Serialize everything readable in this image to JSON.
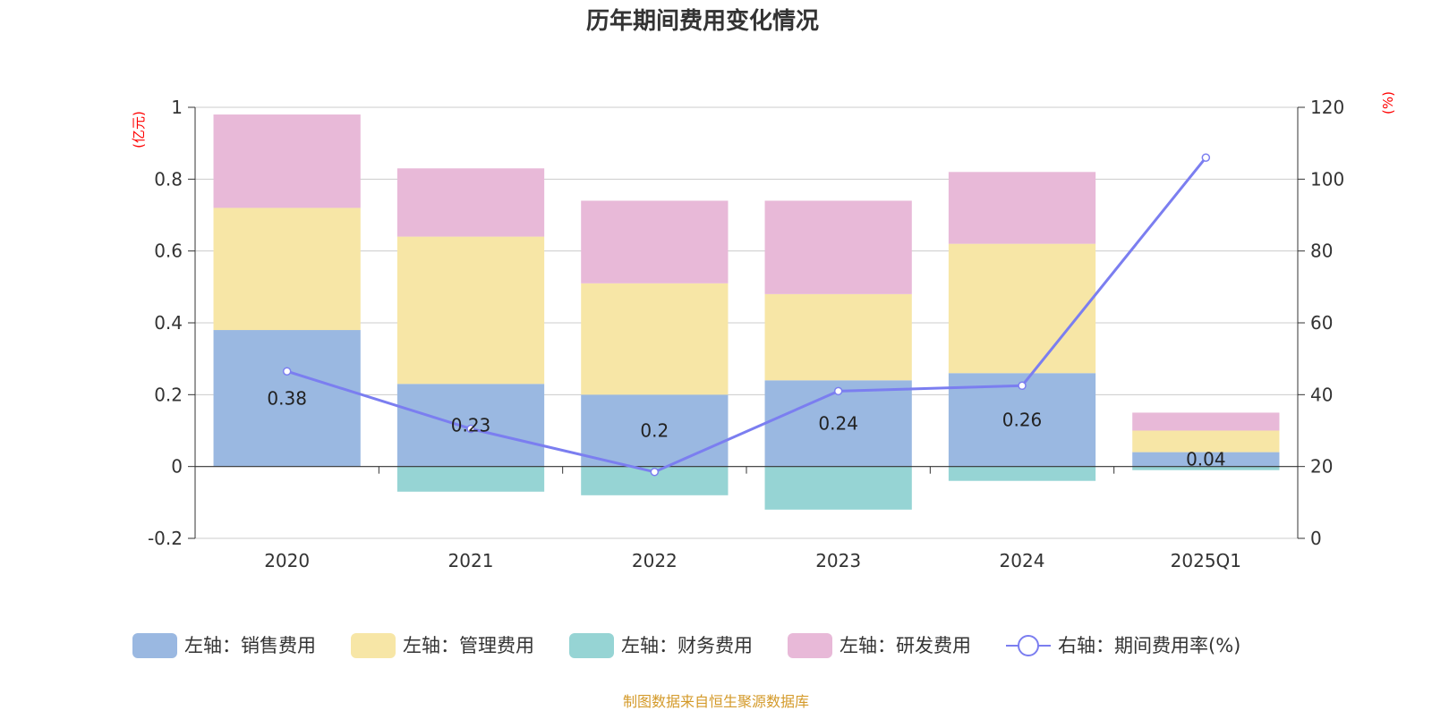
{
  "chart_data": {
    "type": "bar+line",
    "title": "历年期间费用变化情况",
    "categories": [
      "2020",
      "2021",
      "2022",
      "2023",
      "2024",
      "2025Q1"
    ],
    "left_axis": {
      "unit_label": "(亿元)",
      "range": [
        -0.2,
        1
      ],
      "ticks": [
        "-0.2",
        "0",
        "0.2",
        "0.4",
        "0.6",
        "0.8",
        "1"
      ]
    },
    "right_axis": {
      "unit_label": "(%)",
      "range": [
        0,
        120
      ],
      "ticks": [
        "0",
        "20",
        "40",
        "60",
        "80",
        "100",
        "120"
      ]
    },
    "series": [
      {
        "name": "左轴：销售费用",
        "kind": "bar",
        "color": "#9ab8e1",
        "values": [
          0.38,
          0.23,
          0.2,
          0.24,
          0.26,
          0.04
        ],
        "labels": [
          "0.38",
          "0.23",
          "0.2",
          "0.24",
          "0.26",
          "0.04"
        ]
      },
      {
        "name": "左轴：管理费用",
        "kind": "bar",
        "color": "#f7e6a6",
        "values": [
          0.34,
          0.41,
          0.31,
          0.24,
          0.36,
          0.06
        ]
      },
      {
        "name": "左轴：财务费用",
        "kind": "bar",
        "color": "#96d4d4",
        "values": [
          0.0,
          -0.07,
          -0.08,
          -0.12,
          -0.04,
          -0.01
        ]
      },
      {
        "name": "左轴：研发费用",
        "kind": "bar",
        "color": "#e8b9d8",
        "values": [
          0.26,
          0.19,
          0.23,
          0.26,
          0.2,
          0.05
        ]
      },
      {
        "name": "右轴：期间费用率(%)",
        "kind": "line",
        "color": "#7b7ef0",
        "values": [
          46.5,
          30.5,
          18.5,
          41.0,
          42.5,
          106.0
        ]
      }
    ],
    "legend_position": "bottom",
    "source": "制图数据来自恒生聚源数据库"
  }
}
